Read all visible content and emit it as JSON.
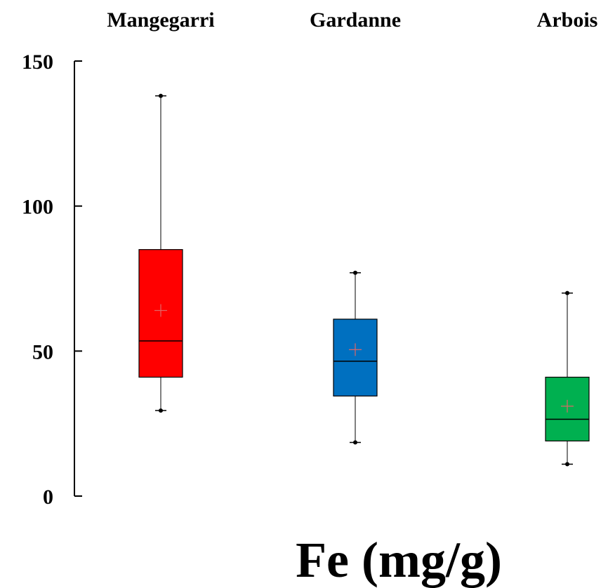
{
  "chart_data": {
    "type": "box",
    "xlabel": "Fe (mg/g)",
    "ylim": [
      0,
      150
    ],
    "yticks": [
      0,
      50,
      100,
      150
    ],
    "grid": false,
    "categories": [
      "Mangegarri",
      "Gardanne",
      "Arbois"
    ],
    "boxes": [
      {
        "category": "Mangegarri",
        "min": 29.5,
        "q1": 41,
        "median": 53.5,
        "q3": 85,
        "max": 138,
        "mean": 64,
        "color": "#ff0000"
      },
      {
        "category": "Gardanne",
        "min": 18.5,
        "q1": 34.5,
        "median": 46.5,
        "q3": 61,
        "max": 77,
        "mean": 50.5,
        "color": "#0070c0"
      },
      {
        "category": "Arbois",
        "min": 11,
        "q1": 19,
        "median": 26.5,
        "q3": 41,
        "max": 70,
        "mean": 31,
        "color": "#00b050"
      }
    ],
    "mean_marker_color": "#e06666"
  }
}
